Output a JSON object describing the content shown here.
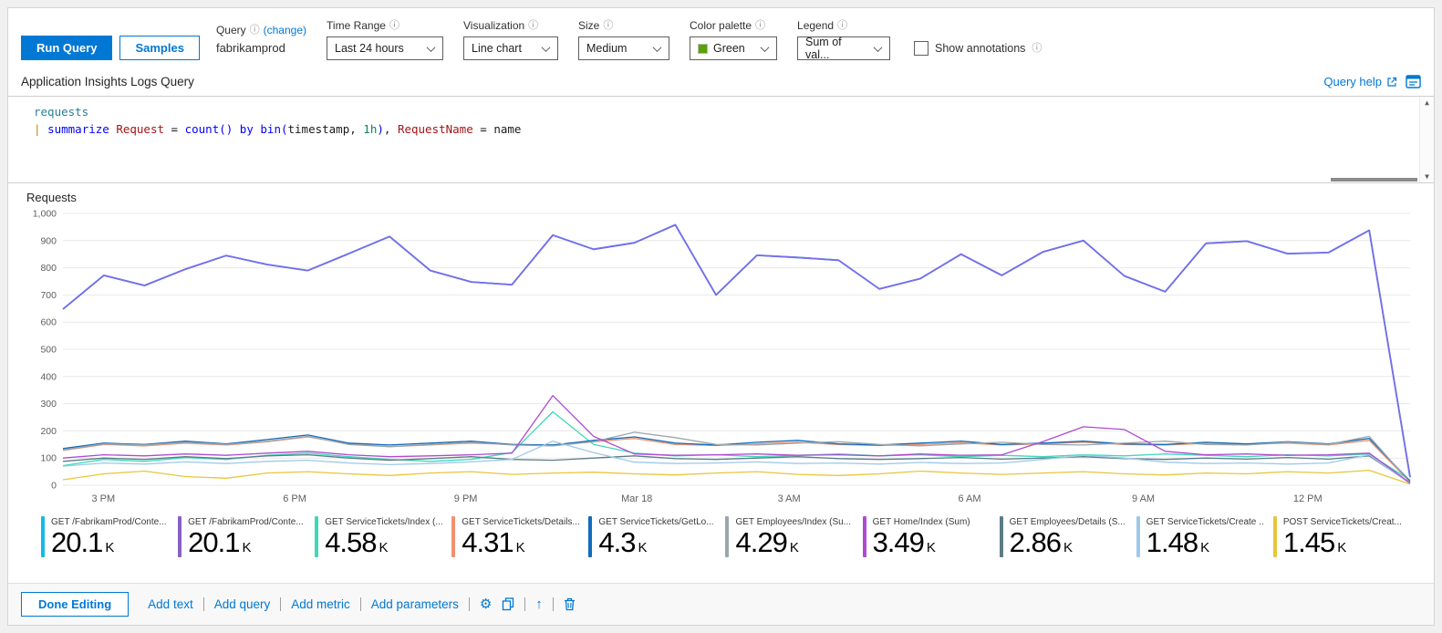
{
  "icons": {
    "info": "ⓘ",
    "gear": "⚙",
    "up_arrow": "↑",
    "vscroll_up": "▲",
    "vscroll_down": "▼"
  },
  "toolbar": {
    "run_query": "Run Query",
    "samples": "Samples",
    "query_label": "Query",
    "change_link": "(change)",
    "query_value": "fabrikamprod",
    "controls": [
      {
        "label": "Time Range",
        "value": "Last 24 hours"
      },
      {
        "label": "Visualization",
        "value": "Line chart"
      },
      {
        "label": "Size",
        "value": "Medium"
      },
      {
        "label": "Color palette",
        "value": "Green",
        "swatch": "#57a300"
      },
      {
        "label": "Legend",
        "value": "Sum of val..."
      }
    ],
    "show_annotations": "Show annotations"
  },
  "section": {
    "title": "Application Insights Logs Query",
    "query_help": "Query help"
  },
  "editor": {
    "line1": {
      "t1": "requests"
    },
    "line2": {
      "t1": "| ",
      "t2": "summarize ",
      "t3": "Request",
      "t4": " = ",
      "t5": "count()",
      "t6": " by ",
      "t7": "bin(",
      "t8": "timestamp",
      "t9": ", ",
      "t10": "1h",
      "t11": ")",
      "t12": ", ",
      "t13": "RequestName",
      "t14": " = ",
      "t15": "name"
    }
  },
  "chart_data": {
    "type": "line",
    "title": "Requests",
    "xlabel": "",
    "ylabel": "",
    "ylim": [
      0,
      1000
    ],
    "grid": true,
    "legend_position": "bottom",
    "y_ticks": [
      {
        "v": 0,
        "label": "0"
      },
      {
        "v": 100,
        "label": "100"
      },
      {
        "v": 200,
        "label": "200"
      },
      {
        "v": 300,
        "label": "300"
      },
      {
        "v": 400,
        "label": "400"
      },
      {
        "v": 500,
        "label": "500"
      },
      {
        "v": 600,
        "label": "600"
      },
      {
        "v": 700,
        "label": "700"
      },
      {
        "v": 800,
        "label": "800"
      },
      {
        "v": 900,
        "label": "900"
      },
      {
        "v": 1000,
        "label": "1,000"
      }
    ],
    "x_ticks": [
      {
        "pos": 0.03,
        "label": "3 PM"
      },
      {
        "pos": 0.172,
        "label": "6 PM"
      },
      {
        "pos": 0.299,
        "label": "9 PM"
      },
      {
        "pos": 0.426,
        "label": "Mar 18"
      },
      {
        "pos": 0.539,
        "label": "3 AM"
      },
      {
        "pos": 0.673,
        "label": "6 AM"
      },
      {
        "pos": 0.802,
        "label": "9 AM"
      },
      {
        "pos": 0.924,
        "label": "12 PM"
      }
    ],
    "series": [
      {
        "name": "get-servicetickets-index",
        "color": "#3fd8b8",
        "width": 1.3,
        "values": [
          72,
          95,
          88,
          102,
          95,
          110,
          118,
          105,
          95,
          88,
          95,
          120,
          270,
          150,
          118,
          108,
          112,
          105,
          110,
          115,
          108,
          112,
          105,
          110,
          105,
          112,
          108,
          115,
          110,
          105,
          112,
          108,
          115,
          18
        ]
      },
      {
        "name": "get-servicetickets-details",
        "color": "#f0926e",
        "width": 1.3,
        "values": [
          128,
          150,
          145,
          155,
          148,
          160,
          178,
          152,
          142,
          148,
          155,
          150,
          148,
          160,
          172,
          150,
          146,
          152,
          158,
          150,
          146,
          150,
          156,
          148,
          152,
          158,
          150,
          148,
          154,
          150,
          155,
          148,
          165,
          12
        ]
      },
      {
        "name": "get-servicetickets-getlocation",
        "color": "#0f6cbd",
        "width": 1.3,
        "values": [
          135,
          155,
          150,
          162,
          152,
          168,
          185,
          155,
          148,
          155,
          162,
          150,
          148,
          165,
          178,
          155,
          148,
          158,
          165,
          152,
          148,
          155,
          162,
          150,
          155,
          162,
          152,
          150,
          158,
          152,
          160,
          152,
          172,
          15
        ]
      },
      {
        "name": "get-employees-index",
        "color": "#9aa7ad",
        "width": 1.3,
        "values": [
          130,
          152,
          148,
          158,
          150,
          162,
          180,
          150,
          142,
          150,
          158,
          148,
          145,
          160,
          195,
          175,
          150,
          148,
          155,
          160,
          150,
          145,
          152,
          158,
          150,
          148,
          155,
          162,
          150,
          148,
          158,
          150,
          180,
          10
        ]
      },
      {
        "name": "get-employees-details",
        "color": "#5c7d87",
        "width": 1.3,
        "values": [
          88,
          100,
          95,
          105,
          98,
          108,
          112,
          100,
          92,
          98,
          105,
          95,
          92,
          100,
          108,
          98,
          95,
          100,
          105,
          98,
          95,
          98,
          102,
          96,
          100,
          105,
          98,
          95,
          100,
          96,
          102,
          96,
          108,
          8
        ]
      },
      {
        "name": "get-servicetickets-create",
        "color": "#9dc9ea",
        "width": 1.3,
        "values": [
          70,
          82,
          78,
          86,
          80,
          88,
          92,
          82,
          76,
          80,
          86,
          95,
          162,
          120,
          85,
          80,
          82,
          86,
          80,
          82,
          78,
          84,
          80,
          82,
          95,
          110,
          100,
          85,
          80,
          82,
          78,
          82,
          112,
          6
        ]
      },
      {
        "name": "post-servicetickets-create",
        "color": "#e9c53c",
        "width": 1.3,
        "values": [
          20,
          42,
          52,
          32,
          26,
          45,
          50,
          42,
          36,
          45,
          50,
          40,
          45,
          48,
          42,
          38,
          45,
          50,
          40,
          36,
          42,
          52,
          45,
          40,
          45,
          50,
          42,
          38,
          45,
          42,
          50,
          45,
          55,
          4
        ]
      },
      {
        "name": "get-home-index",
        "color": "#b04ad2",
        "width": 1.3,
        "values": [
          100,
          112,
          108,
          115,
          110,
          118,
          125,
          112,
          105,
          108,
          112,
          118,
          330,
          180,
          115,
          110,
          112,
          115,
          110,
          112,
          108,
          115,
          110,
          112,
          160,
          215,
          205,
          125,
          112,
          115,
          110,
          112,
          118,
          8
        ]
      },
      {
        "name": "get-fabrikamprod-content-cyan",
        "color": "#16b9e8",
        "width": 1.8,
        "values": [
          648,
          772,
          735,
          795,
          845,
          812,
          790,
          852,
          915,
          790,
          748,
          738,
          920,
          868,
          892,
          958,
          700,
          846,
          838,
          828,
          722,
          760,
          850,
          772,
          858,
          900,
          770,
          712,
          890,
          898,
          852,
          856,
          938,
          30
        ]
      },
      {
        "name": "get-fabrikamprod-content-purple",
        "color": "#7b6cea",
        "width": 1.8,
        "values": [
          648,
          772,
          735,
          795,
          845,
          812,
          790,
          852,
          915,
          790,
          748,
          738,
          920,
          868,
          892,
          958,
          700,
          846,
          838,
          828,
          722,
          760,
          850,
          772,
          858,
          900,
          770,
          712,
          890,
          898,
          852,
          856,
          938,
          30
        ]
      }
    ]
  },
  "legend": [
    {
      "label": "GET /FabrikamProd/Conte...",
      "value": "20.1",
      "unit": "K",
      "color": "#16b9e8"
    },
    {
      "label": "GET /FabrikamProd/Conte...",
      "value": "20.1",
      "unit": "K",
      "color": "#8661c5"
    },
    {
      "label": "GET ServiceTickets/Index (...",
      "value": "4.58",
      "unit": "K",
      "color": "#3fd8b8"
    },
    {
      "label": "GET ServiceTickets/Details...",
      "value": "4.31",
      "unit": "K",
      "color": "#f0926e"
    },
    {
      "label": "GET ServiceTickets/GetLo...",
      "value": "4.3",
      "unit": "K",
      "color": "#0f6cbd"
    },
    {
      "label": "GET Employees/Index (Su...",
      "value": "4.29",
      "unit": "K",
      "color": "#9aa7ad"
    },
    {
      "label": "GET Home/Index (Sum)",
      "value": "3.49",
      "unit": "K",
      "color": "#b04ad2"
    },
    {
      "label": "GET Employees/Details (S...",
      "value": "2.86",
      "unit": "K",
      "color": "#5c7d87"
    },
    {
      "label": "GET ServiceTickets/Create ...",
      "value": "1.48",
      "unit": "K",
      "color": "#9dc9ea"
    },
    {
      "label": "POST ServiceTickets/Creat...",
      "value": "1.45",
      "unit": "K",
      "color": "#e9c53c"
    }
  ],
  "footer": {
    "done_editing": "Done Editing",
    "links": [
      "Add text",
      "Add query",
      "Add metric",
      "Add parameters"
    ]
  }
}
